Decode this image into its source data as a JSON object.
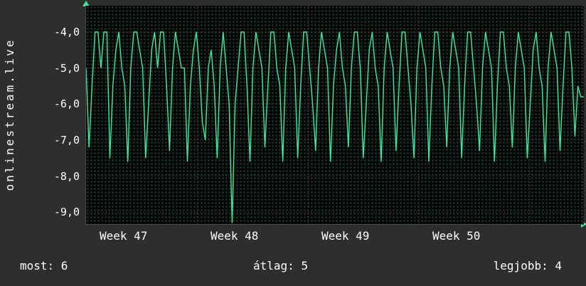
{
  "vertical_title": "onlinestream.live",
  "stats": {
    "most": "most: 6",
    "atlag": "átlag: 5",
    "legjobb": "legjobb: 4"
  },
  "colors": {
    "line": "#3fe8a1",
    "major_grid": "#7a3b3b",
    "minor_grid": "#1d4032",
    "background": "#2e2e2e",
    "plot_background": "#070707",
    "text": "#ffffff",
    "axis_arrow": "#3fe8a1"
  },
  "chart_data": {
    "type": "line",
    "title": "onlinestream.live",
    "xlabel": "",
    "ylabel": "",
    "legend": "none",
    "grid": true,
    "ylim": {
      "min": -9.33,
      "max": -3.27
    },
    "y_tick_values": [
      -4,
      -5,
      -6,
      -7,
      -8,
      -9
    ],
    "y_tick_labels": [
      "-4,0",
      "-5,0",
      "-6,0",
      "-7,0",
      "-8,0",
      "-9,0"
    ],
    "x_tick_labels": [
      "Week 47",
      "Week 48",
      "Week 49",
      "Week 50"
    ],
    "annotations": {
      "most": 6,
      "atlag": 5,
      "legjobb": 4
    },
    "series": [
      {
        "name": "onlinestream.live",
        "color": "#3fe8a1",
        "values": [
          -5.0,
          -7.2,
          -5.5,
          -4.0,
          -4.0,
          -5.0,
          -4.0,
          -4.0,
          -7.5,
          -5.5,
          -4.5,
          -4.0,
          -5.0,
          -5.5,
          -7.6,
          -5.0,
          -4.0,
          -4.0,
          -4.5,
          -5.0,
          -7.5,
          -6.0,
          -4.5,
          -4.0,
          -5.0,
          -4.0,
          -4.0,
          -5.5,
          -7.3,
          -5.0,
          -4.0,
          -4.5,
          -5.0,
          -5.0,
          -7.6,
          -5.5,
          -4.5,
          -4.0,
          -5.0,
          -6.5,
          -7.0,
          -5.0,
          -4.5,
          -5.5,
          -7.5,
          -5.0,
          -4.0,
          -5.0,
          -6.0,
          -9.3,
          -6.0,
          -5.0,
          -4.0,
          -4.0,
          -5.5,
          -7.6,
          -5.0,
          -4.0,
          -4.5,
          -5.0,
          -7.2,
          -5.5,
          -4.0,
          -4.0,
          -5.0,
          -5.5,
          -7.6,
          -5.0,
          -4.0,
          -4.5,
          -5.0,
          -7.5,
          -5.5,
          -4.0,
          -4.0,
          -5.0,
          -6.0,
          -7.3,
          -5.0,
          -4.0,
          -4.5,
          -5.0,
          -7.6,
          -5.5,
          -4.5,
          -4.0,
          -5.0,
          -5.5,
          -7.2,
          -5.0,
          -4.0,
          -4.0,
          -5.0,
          -7.5,
          -6.0,
          -4.5,
          -4.0,
          -5.0,
          -5.5,
          -7.6,
          -5.0,
          -4.0,
          -4.5,
          -5.0,
          -7.3,
          -5.5,
          -4.0,
          -4.0,
          -5.0,
          -6.0,
          -7.5,
          -5.0,
          -4.0,
          -4.5,
          -5.0,
          -7.6,
          -5.5,
          -4.0,
          -4.0,
          -5.0,
          -5.5,
          -7.2,
          -5.0,
          -4.0,
          -4.5,
          -5.0,
          -7.5,
          -5.5,
          -4.0,
          -4.0,
          -5.0,
          -6.0,
          -7.3,
          -5.0,
          -4.0,
          -4.5,
          -5.0,
          -7.6,
          -5.5,
          -4.0,
          -4.0,
          -5.0,
          -5.5,
          -7.2,
          -5.0,
          -4.0,
          -4.5,
          -5.0,
          -7.5,
          -6.0,
          -4.5,
          -4.0,
          -5.0,
          -5.5,
          -7.6,
          -5.0,
          -4.0,
          -4.5,
          -5.0,
          -7.3,
          -5.5,
          -4.0,
          -4.0,
          -5.0,
          -6.9,
          -5.5,
          -5.8,
          -5.8
        ]
      }
    ]
  }
}
